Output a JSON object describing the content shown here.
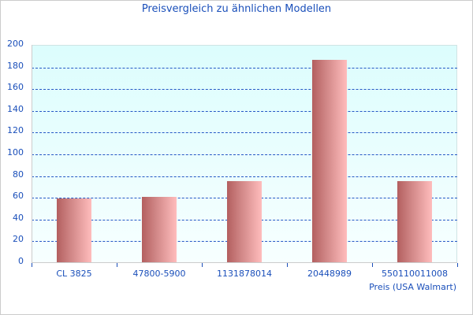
{
  "chart_data": {
    "type": "bar",
    "title": "Preisvergleich zu ähnlichen Modellen",
    "xlabel": "Preis (USA Walmart)",
    "ylabel": "",
    "categories": [
      "CL 3825",
      "47800-5900",
      "1131878014",
      "20448989",
      "550110011008"
    ],
    "values": [
      59,
      60,
      75,
      186,
      75
    ],
    "ylim": [
      0,
      200
    ],
    "yticks": [
      0,
      20,
      40,
      60,
      80,
      100,
      120,
      140,
      160,
      180,
      200
    ],
    "grid": true,
    "legend": null,
    "colors": {
      "bar_dark": "#b35f5f",
      "bar_light": "#ffbcbc",
      "grid": "#2457c5",
      "text": "#1a4fba",
      "plot_bg_top": "#dcfdfd",
      "plot_bg_bottom": "#f7ffff"
    }
  }
}
